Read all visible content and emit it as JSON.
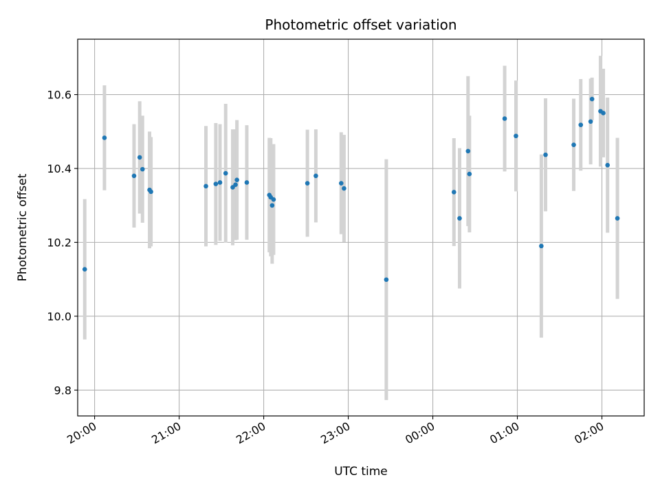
{
  "chart_data": {
    "type": "scatter",
    "title": "Photometric offset variation",
    "xlabel": "UTC time",
    "ylabel": "Photometric offset",
    "xlim": [
      "19:48",
      "02:30"
    ],
    "ylim": [
      9.73,
      10.75
    ],
    "grid": true,
    "x_tick_labels": [
      "20:00",
      "21:00",
      "22:00",
      "23:00",
      "00:00",
      "01:00",
      "02:00"
    ],
    "y_tick_labels": [
      "9.8",
      "10.0",
      "10.2",
      "10.4",
      "10.6"
    ],
    "colors": {
      "marker": "#1f77b4",
      "errorbar": "#d3d3d3",
      "grid": "#b0b0b0"
    },
    "series": [
      {
        "points": [
          {
            "x": "19:53",
            "y": 10.127,
            "yerr": 0.19
          },
          {
            "x": "20:07",
            "y": 10.483,
            "yerr": 0.142
          },
          {
            "x": "20:28",
            "y": 10.38,
            "yerr": 0.14
          },
          {
            "x": "20:32",
            "y": 10.43,
            "yerr": 0.152
          },
          {
            "x": "20:34",
            "y": 10.398,
            "yerr": 0.145
          },
          {
            "x": "20:39",
            "y": 10.342,
            "yerr": 0.158
          },
          {
            "x": "20:40",
            "y": 10.337,
            "yerr": 0.148
          },
          {
            "x": "21:19",
            "y": 10.352,
            "yerr": 0.163
          },
          {
            "x": "21:26",
            "y": 10.358,
            "yerr": 0.165
          },
          {
            "x": "21:29",
            "y": 10.362,
            "yerr": 0.158
          },
          {
            "x": "21:33",
            "y": 10.387,
            "yerr": 0.188
          },
          {
            "x": "21:38",
            "y": 10.349,
            "yerr": 0.157
          },
          {
            "x": "21:40",
            "y": 10.356,
            "yerr": 0.15
          },
          {
            "x": "21:41",
            "y": 10.369,
            "yerr": 0.162
          },
          {
            "x": "21:48",
            "y": 10.362,
            "yerr": 0.155
          },
          {
            "x": "22:04",
            "y": 10.328,
            "yerr": 0.155
          },
          {
            "x": "22:05",
            "y": 10.322,
            "yerr": 0.16
          },
          {
            "x": "22:06",
            "y": 10.3,
            "yerr": 0.158
          },
          {
            "x": "22:07",
            "y": 10.316,
            "yerr": 0.15
          },
          {
            "x": "22:31",
            "y": 10.36,
            "yerr": 0.145
          },
          {
            "x": "22:37",
            "y": 10.38,
            "yerr": 0.126
          },
          {
            "x": "22:55",
            "y": 10.36,
            "yerr": 0.138
          },
          {
            "x": "22:57",
            "y": 10.346,
            "yerr": 0.145
          },
          {
            "x": "23:27",
            "y": 10.099,
            "yerr": 0.326
          },
          {
            "x": "00:15",
            "y": 10.336,
            "yerr": 0.146
          },
          {
            "x": "00:19",
            "y": 10.265,
            "yerr": 0.19
          },
          {
            "x": "00:25",
            "y": 10.447,
            "yerr": 0.203
          },
          {
            "x": "00:26",
            "y": 10.385,
            "yerr": 0.158
          },
          {
            "x": "00:51",
            "y": 10.535,
            "yerr": 0.143
          },
          {
            "x": "00:59",
            "y": 10.488,
            "yerr": 0.15
          },
          {
            "x": "01:17",
            "y": 10.19,
            "yerr": 0.248
          },
          {
            "x": "01:20",
            "y": 10.437,
            "yerr": 0.153
          },
          {
            "x": "01:40",
            "y": 10.464,
            "yerr": 0.125
          },
          {
            "x": "01:45",
            "y": 10.518,
            "yerr": 0.124
          },
          {
            "x": "01:52",
            "y": 10.527,
            "yerr": 0.116
          },
          {
            "x": "01:53",
            "y": 10.588,
            "yerr": 0.058
          },
          {
            "x": "01:59",
            "y": 10.555,
            "yerr": 0.15
          },
          {
            "x": "02:01",
            "y": 10.55,
            "yerr": 0.12
          },
          {
            "x": "02:04",
            "y": 10.409,
            "yerr": 0.183
          },
          {
            "x": "02:11",
            "y": 10.265,
            "yerr": 0.218
          }
        ]
      }
    ]
  }
}
